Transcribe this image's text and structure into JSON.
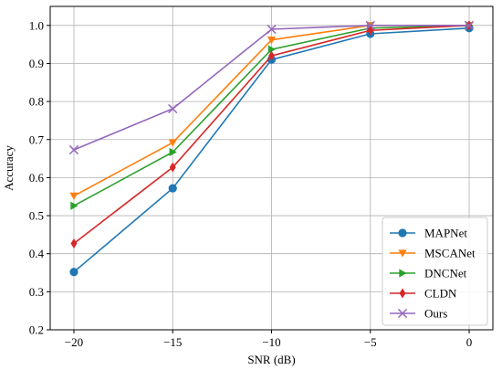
{
  "chart_data": {
    "type": "line",
    "title": "",
    "xlabel": "SNR (dB)",
    "ylabel": "Accuracy",
    "x": [
      -20,
      -15,
      -10,
      -5,
      0
    ],
    "xlim": [
      -21.2,
      1.2
    ],
    "ylim": [
      0.2,
      1.05
    ],
    "xticks": [
      -20,
      -15,
      -10,
      -5,
      0
    ],
    "xtick_labels": [
      "−20",
      "−15",
      "−10",
      "−5",
      "0"
    ],
    "yticks": [
      0.2,
      0.3,
      0.4,
      0.5,
      0.6,
      0.7,
      0.8,
      0.9,
      1.0
    ],
    "ytick_labels": [
      "0.2",
      "0.3",
      "0.4",
      "0.5",
      "0.6",
      "0.7",
      "0.8",
      "0.9",
      "1.0"
    ],
    "grid": true,
    "legend_position": "bottom-right",
    "series": [
      {
        "name": "MAPNet",
        "color": "#1f77b4",
        "marker": "circle",
        "values": [
          0.352,
          0.572,
          0.91,
          0.978,
          0.993
        ]
      },
      {
        "name": "MSCANet",
        "color": "#ff7f0e",
        "marker": "triangle-down",
        "values": [
          0.552,
          0.692,
          0.962,
          1.0,
          1.0
        ]
      },
      {
        "name": "DNCNet",
        "color": "#2ca02c",
        "marker": "triangle-right",
        "values": [
          0.526,
          0.667,
          0.937,
          0.993,
          1.0
        ]
      },
      {
        "name": "CLDN",
        "color": "#d62728",
        "marker": "diamond",
        "values": [
          0.427,
          0.627,
          0.92,
          0.987,
          1.0
        ]
      },
      {
        "name": "Ours",
        "color": "#9467bd",
        "marker": "x",
        "values": [
          0.673,
          0.781,
          0.99,
          1.0,
          1.0
        ]
      }
    ]
  }
}
